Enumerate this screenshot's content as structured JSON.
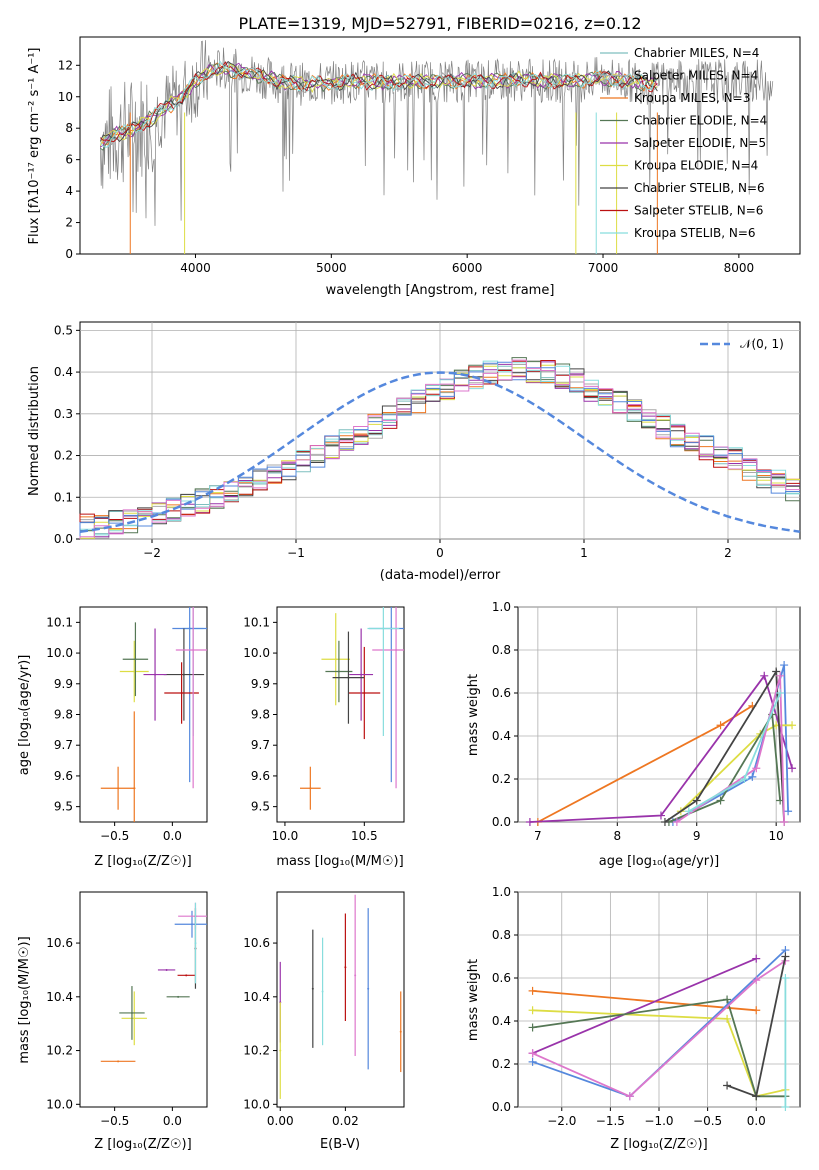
{
  "figure_title": "PLATE=1319, MJD=52791, FIBERID=0216, z=0.12",
  "model_colors": [
    "#7fbfbf",
    "#aaaaaa",
    "#ee7722",
    "#557755",
    "#9933aa",
    "#dddd44",
    "#444444",
    "#bb1111",
    "#88dddd"
  ],
  "chart_data": [
    {
      "id": "spectrum",
      "type": "line",
      "title": "PLATE=1319, MJD=52791, FIBERID=0216, z=0.12",
      "xlabel": "wavelength [Angstrom, rest frame]",
      "ylabel": "Flux [fλ10⁻¹⁷ erg cm⁻² s⁻¹ A⁻¹]",
      "xlim": [
        3150,
        8450
      ],
      "ylim": [
        0,
        13.8
      ],
      "xticks": [
        4000,
        5000,
        6000,
        7000,
        8000
      ],
      "yticks": [
        0,
        2,
        4,
        6,
        8,
        10,
        12
      ],
      "legend_placement": "upper-right",
      "legend": [
        "Chabrier MILES, N_SSP=4",
        "Salpeter MILES, N_SSP=4",
        "Kroupa MILES, N_SSP=3",
        "Chabrier ELODIE, N_SSP=4",
        "Salpeter ELODIE, N_SSP=5",
        "Kroupa ELODIE, N_SSP=4",
        "Chabrier STELIB, N_SSP=6",
        "Salpeter STELIB, N_SSP=6",
        "Kroupa STELIB, N_SSP=6"
      ],
      "continuum": {
        "x": [
          3300,
          3400,
          3500,
          3600,
          3700,
          3800,
          3900,
          4000,
          4100,
          4200,
          4400,
          4600,
          4800,
          5000,
          5200,
          5400,
          5600,
          5800,
          6000,
          6200,
          6400,
          6600,
          6800,
          7000,
          7200,
          7400
        ],
        "y": [
          7.0,
          7.6,
          7.8,
          8.2,
          8.8,
          9.4,
          10.0,
          11.0,
          11.6,
          11.8,
          11.5,
          11.0,
          10.8,
          10.9,
          11.0,
          10.9,
          11.0,
          11.0,
          11.0,
          11.0,
          11.1,
          11.0,
          11.0,
          11.2,
          11.0,
          10.8
        ]
      },
      "data_noise": {
        "x_range": [
          3300,
          8250
        ],
        "y_range": [
          0,
          13.6
        ]
      }
    },
    {
      "id": "residuals",
      "type": "line",
      "xlabel": "(data-model)/error",
      "ylabel": "Normed distribution",
      "xlim": [
        -2.5,
        2.5
      ],
      "ylim": [
        0,
        0.52
      ],
      "xticks": [
        -2,
        -1,
        0,
        1,
        2
      ],
      "yticks": [
        0.0,
        0.1,
        0.2,
        0.3,
        0.4,
        0.5
      ],
      "grid": true,
      "legend_placement": "upper-right",
      "legend": [
        "𝒩(0, 1)"
      ],
      "normal_curve": {
        "mu": 0,
        "sigma": 1
      },
      "hist_bin_width": 0.1,
      "hist_values": [
        0.03,
        0.03,
        0.04,
        0.04,
        0.05,
        0.06,
        0.07,
        0.08,
        0.09,
        0.1,
        0.11,
        0.12,
        0.14,
        0.15,
        0.17,
        0.19,
        0.2,
        0.22,
        0.24,
        0.25,
        0.27,
        0.29,
        0.31,
        0.33,
        0.35,
        0.36,
        0.38,
        0.39,
        0.4,
        0.4,
        0.41,
        0.4,
        0.4,
        0.39,
        0.38,
        0.36,
        0.35,
        0.33,
        0.31,
        0.29,
        0.27,
        0.25,
        0.24,
        0.22,
        0.2,
        0.19,
        0.17,
        0.15,
        0.14,
        0.12
      ]
    },
    {
      "id": "age_vs_Z",
      "type": "scatter",
      "xlabel": "Z [log₁₀(Z/Z☉)]",
      "ylabel": "age  [log₁₀(age/yr)]",
      "xlim": [
        -0.8,
        0.3
      ],
      "ylim": [
        9.45,
        10.15
      ],
      "xticks": [
        -0.5,
        0.0
      ],
      "yticks": [
        9.5,
        9.6,
        9.7,
        9.8,
        9.9,
        10.0,
        10.1
      ],
      "points": [
        {
          "x": -0.47,
          "y": 9.56,
          "xerr": 0.3,
          "yerr": 0.07,
          "color": "#ee7722"
        },
        {
          "x": -0.33,
          "y": 9.94,
          "xerr": 0.25,
          "yerr": 0.1,
          "color": "#dddd44"
        },
        {
          "x": -0.33,
          "y": 9.56,
          "xerr": 0.0,
          "yerr": 0.25,
          "color": "#ee7722"
        },
        {
          "x": -0.32,
          "y": 9.98,
          "xerr": 0.22,
          "yerr": 0.12,
          "color": "#557755"
        },
        {
          "x": 0.18,
          "y": 10.08,
          "xerr": 0.18,
          "yerr": 0.35,
          "color": "#88dddd"
        },
        {
          "x": 0.15,
          "y": 10.08,
          "xerr": 0.3,
          "yerr": 0.5,
          "color": "#5588dd"
        },
        {
          "x": 0.1,
          "y": 9.93,
          "xerr": 0.35,
          "yerr": 0.15,
          "color": "#444444"
        },
        {
          "x": 0.08,
          "y": 9.87,
          "xerr": 0.3,
          "yerr": 0.1,
          "color": "#bb1111"
        },
        {
          "x": -0.15,
          "y": 9.93,
          "xerr": 0.2,
          "yerr": 0.15,
          "color": "#9933aa"
        },
        {
          "x": 0.18,
          "y": 10.01,
          "xerr": 0.3,
          "yerr": 0.45,
          "color": "#dd77cc"
        }
      ]
    },
    {
      "id": "age_vs_mass",
      "type": "scatter",
      "xlabel": "mass [log₁₀(M/M☉)]",
      "ylabel": "",
      "xlim": [
        9.95,
        10.75
      ],
      "ylim": [
        9.45,
        10.15
      ],
      "xticks": [
        10.0,
        10.5
      ],
      "yticks": [
        9.5,
        9.6,
        9.7,
        9.8,
        9.9,
        10.0,
        10.1
      ],
      "points": [
        {
          "x": 10.16,
          "y": 9.56,
          "xerr": 0.13,
          "yerr": 0.07,
          "color": "#ee7722"
        },
        {
          "x": 10.32,
          "y": 9.98,
          "xerr": 0.18,
          "yerr": 0.15,
          "color": "#dddd44"
        },
        {
          "x": 10.34,
          "y": 9.94,
          "xerr": 0.17,
          "yerr": 0.1,
          "color": "#557755"
        },
        {
          "x": 10.67,
          "y": 10.08,
          "xerr": 0.28,
          "yerr": 0.5,
          "color": "#5588dd"
        },
        {
          "x": 10.7,
          "y": 10.01,
          "xerr": 0.3,
          "yerr": 0.45,
          "color": "#dd77cc"
        },
        {
          "x": 10.5,
          "y": 9.87,
          "xerr": 0.2,
          "yerr": 0.15,
          "color": "#bb1111"
        },
        {
          "x": 10.48,
          "y": 9.93,
          "xerr": 0.15,
          "yerr": 0.15,
          "color": "#9933aa"
        },
        {
          "x": 10.4,
          "y": 9.92,
          "xerr": 0.2,
          "yerr": 0.15,
          "color": "#444444"
        },
        {
          "x": 10.62,
          "y": 10.08,
          "xerr": 0.2,
          "yerr": 0.35,
          "color": "#88dddd"
        }
      ]
    },
    {
      "id": "mass_weight_vs_age",
      "type": "line",
      "xlabel": "age  [log₁₀(age/yr)]",
      "ylabel": "mass weight",
      "xlim": [
        6.75,
        10.3
      ],
      "ylim": [
        0.0,
        1.0
      ],
      "xticks": [
        7,
        8,
        9,
        10
      ],
      "yticks": [
        0.0,
        0.2,
        0.4,
        0.6,
        0.8,
        1.0
      ],
      "grid": true,
      "series": [
        {
          "color": "#ee7722",
          "x": [
            7.0,
            9.3,
            9.7
          ],
          "y": [
            0.0,
            0.45,
            0.54
          ]
        },
        {
          "color": "#9933aa",
          "x": [
            6.9,
            8.55,
            9.85,
            10.2
          ],
          "y": [
            0.0,
            0.03,
            0.68,
            0.25
          ]
        },
        {
          "color": "#5588dd",
          "x": [
            8.7,
            9.7,
            10.1,
            10.15
          ],
          "y": [
            0.0,
            0.21,
            0.73,
            0.05
          ]
        },
        {
          "color": "#dddd44",
          "x": [
            8.8,
            9.8,
            10.0,
            10.2
          ],
          "y": [
            0.05,
            0.41,
            0.45,
            0.45
          ]
        },
        {
          "color": "#557755",
          "x": [
            8.65,
            9.3,
            9.95,
            10.05
          ],
          "y": [
            0.0,
            0.1,
            0.5,
            0.1
          ]
        },
        {
          "color": "#444444",
          "x": [
            8.6,
            9.0,
            10.0,
            10.1
          ],
          "y": [
            0.0,
            0.1,
            0.7,
            0.0
          ]
        },
        {
          "color": "#dd77cc",
          "x": [
            8.75,
            9.75,
            10.05,
            10.1
          ],
          "y": [
            0.0,
            0.25,
            0.68,
            0.0
          ]
        },
        {
          "color": "#88dddd",
          "x": [
            8.9,
            9.6,
            10.05
          ],
          "y": [
            0.05,
            0.2,
            0.6
          ]
        }
      ]
    },
    {
      "id": "mass_vs_Z",
      "type": "scatter",
      "xlabel": "Z [log₁₀(Z/Z☉)]",
      "ylabel": "mass [log₁₀(M/M☉)]",
      "xlim": [
        -0.8,
        0.3
      ],
      "ylim": [
        9.99,
        10.79
      ],
      "xticks": [
        -0.5,
        0.0
      ],
      "yticks": [
        10.0,
        10.2,
        10.4,
        10.6
      ],
      "points": [
        {
          "x": -0.47,
          "y": 10.16,
          "xerr": 0.3,
          "yerr": 0.0,
          "color": "#ee7722"
        },
        {
          "x": -0.33,
          "y": 10.32,
          "xerr": 0.22,
          "yerr": 0.1,
          "color": "#dddd44"
        },
        {
          "x": -0.35,
          "y": 10.34,
          "xerr": 0.22,
          "yerr": 0.1,
          "color": "#557755"
        },
        {
          "x": 0.05,
          "y": 10.4,
          "xerr": 0.2,
          "yerr": 0.0,
          "color": "#557755"
        },
        {
          "x": 0.17,
          "y": 10.67,
          "xerr": 0.3,
          "yerr": 0.05,
          "color": "#5588dd"
        },
        {
          "x": 0.2,
          "y": 10.7,
          "xerr": 0.3,
          "yerr": 0.05,
          "color": "#dd77cc"
        },
        {
          "x": 0.12,
          "y": 10.48,
          "xerr": 0.15,
          "yerr": 0.0,
          "color": "#bb1111"
        },
        {
          "x": -0.05,
          "y": 10.5,
          "xerr": 0.15,
          "yerr": 0.0,
          "color": "#9933aa"
        },
        {
          "x": 0.2,
          "y": 10.58,
          "xerr": 0.0,
          "yerr": 0.15,
          "color": "#444444"
        },
        {
          "x": 0.2,
          "y": 10.6,
          "xerr": 0.0,
          "yerr": 0.15,
          "color": "#88dddd"
        }
      ]
    },
    {
      "id": "mass_vs_ebv",
      "type": "scatter",
      "xlabel": "E(B-V)",
      "ylabel": "",
      "xlim": [
        -0.001,
        0.038
      ],
      "ylim": [
        9.99,
        10.79
      ],
      "xticks": [
        0.0,
        0.02
      ],
      "xticklabels": [
        "0.00",
        "0.02"
      ],
      "yticks": [
        10.0,
        10.2,
        10.4,
        10.6
      ],
      "points": [
        {
          "x": 0.0,
          "y": 10.38,
          "yerr": 0.15,
          "color": "#9933aa"
        },
        {
          "x": 0.0,
          "y": 10.2,
          "yerr": 0.18,
          "color": "#dddd44"
        },
        {
          "x": 0.01,
          "y": 10.43,
          "yerr": 0.22,
          "color": "#444444"
        },
        {
          "x": 0.013,
          "y": 10.42,
          "yerr": 0.2,
          "color": "#88dddd"
        },
        {
          "x": 0.02,
          "y": 10.51,
          "yerr": 0.2,
          "color": "#bb1111"
        },
        {
          "x": 0.023,
          "y": 10.48,
          "yerr": 0.3,
          "color": "#dd77cc"
        },
        {
          "x": 0.027,
          "y": 10.43,
          "yerr": 0.3,
          "color": "#5588dd"
        },
        {
          "x": 0.037,
          "y": 10.27,
          "yerr": 0.15,
          "color": "#ee7722"
        }
      ]
    },
    {
      "id": "mass_weight_vs_Z",
      "type": "line",
      "xlabel": "Z [log₁₀(Z/Z☉)]",
      "ylabel": "mass weight",
      "xlim": [
        -2.45,
        0.45
      ],
      "ylim": [
        0.0,
        1.0
      ],
      "xticks": [
        -2.0,
        -1.5,
        -1.0,
        -0.5,
        0.0
      ],
      "yticks": [
        0.0,
        0.2,
        0.4,
        0.6,
        0.8,
        1.0
      ],
      "grid": true,
      "series": [
        {
          "color": "#ee7722",
          "x": [
            -2.3,
            0.0
          ],
          "y": [
            0.54,
            0.45
          ]
        },
        {
          "color": "#9933aa",
          "x": [
            -2.3,
            0.0
          ],
          "y": [
            0.25,
            0.69
          ]
        },
        {
          "color": "#dddd44",
          "x": [
            -2.3,
            -0.3,
            0.0,
            0.3
          ],
          "y": [
            0.45,
            0.41,
            0.05,
            0.08
          ]
        },
        {
          "color": "#557755",
          "x": [
            -2.3,
            -0.3,
            -0.0,
            0.3
          ],
          "y": [
            0.37,
            0.5,
            0.05,
            0.05
          ]
        },
        {
          "color": "#5588dd",
          "x": [
            -2.3,
            -1.3,
            0.3
          ],
          "y": [
            0.21,
            0.05,
            0.73
          ]
        },
        {
          "color": "#dd77cc",
          "x": [
            -2.3,
            -1.3,
            0.0,
            0.3
          ],
          "y": [
            0.25,
            0.05,
            0.59,
            0.68
          ]
        },
        {
          "color": "#444444",
          "x": [
            -0.3,
            -0.0,
            0.3
          ],
          "y": [
            0.1,
            0.05,
            0.7
          ]
        },
        {
          "color": "#88dddd",
          "x": [
            0.3,
            0.3
          ],
          "y": [
            0.6,
            0.0
          ]
        }
      ]
    }
  ]
}
